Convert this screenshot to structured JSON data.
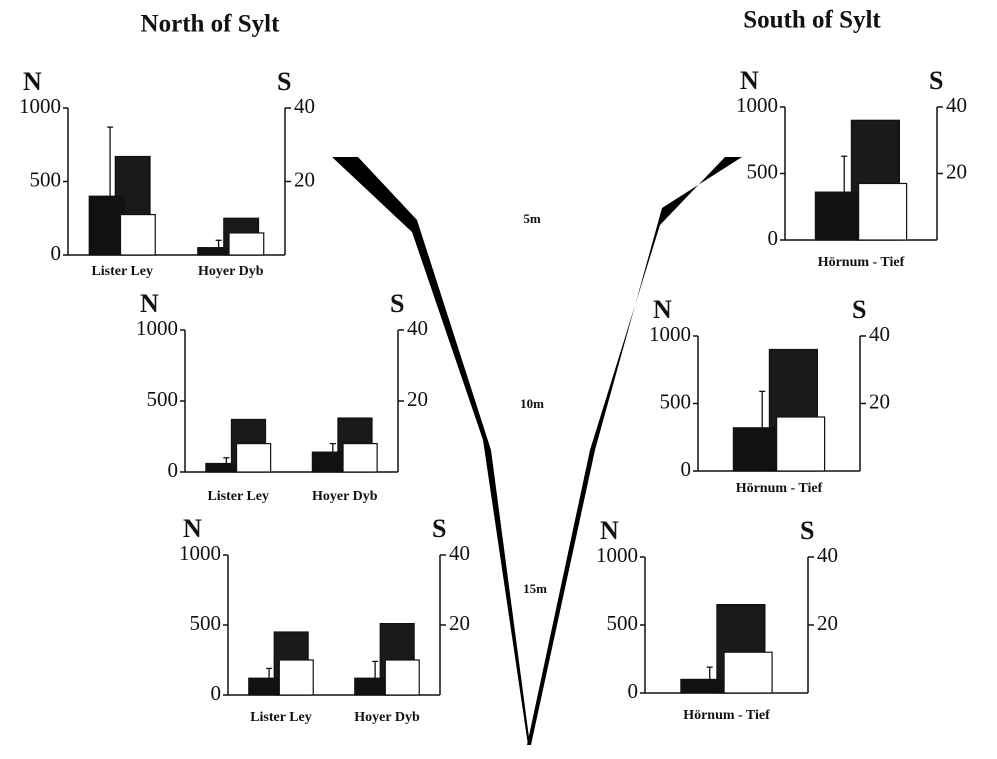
{
  "column_titles": [
    "North of Sylt",
    "South of Sylt"
  ],
  "depth_labels": [
    "5m",
    "10m",
    "15m"
  ],
  "chart_data": [
    {
      "type": "bar",
      "ylabel": "N",
      "y2label": "S",
      "categories": [
        "Lister Ley",
        "Hoyer Dyb"
      ],
      "ylim": [
        0,
        1000
      ],
      "yticks": [
        0,
        500,
        1000
      ],
      "y2lim": [
        0,
        40
      ],
      "y2ticks": [
        20,
        40
      ],
      "series": [
        {
          "name": "N",
          "color": "#111111",
          "values": [
            400,
            50
          ],
          "errors": [
            470,
            50
          ]
        },
        {
          "color": "#1a1a1a",
          "values": [
            670,
            250
          ]
        },
        {
          "name": "S",
          "color": "#ffffff",
          "axis": "y2",
          "values": [
            11,
            6
          ]
        }
      ]
    },
    {
      "type": "bar",
      "ylabel": "N",
      "y2label": "S",
      "categories": [
        "Lister Ley",
        "Hoyer Dyb"
      ],
      "ylim": [
        0,
        1000
      ],
      "yticks": [
        0,
        500,
        1000
      ],
      "y2lim": [
        0,
        40
      ],
      "y2ticks": [
        20,
        40
      ],
      "series": [
        {
          "name": "N",
          "color": "#111111",
          "values": [
            60,
            140
          ],
          "errors": [
            40,
            60
          ]
        },
        {
          "color": "#1a1a1a",
          "values": [
            370,
            380
          ]
        },
        {
          "name": "S",
          "color": "#ffffff",
          "axis": "y2",
          "values": [
            8,
            8
          ]
        }
      ]
    },
    {
      "type": "bar",
      "ylabel": "N",
      "y2label": "S",
      "categories": [
        "Lister Ley",
        "Hoyer Dyb"
      ],
      "ylim": [
        0,
        1000
      ],
      "yticks": [
        0,
        500,
        1000
      ],
      "y2lim": [
        0,
        40
      ],
      "y2ticks": [
        20,
        40
      ],
      "series": [
        {
          "name": "N",
          "color": "#111111",
          "values": [
            120,
            120
          ],
          "errors": [
            70,
            120
          ]
        },
        {
          "color": "#1a1a1a",
          "values": [
            450,
            510
          ]
        },
        {
          "name": "S",
          "color": "#ffffff",
          "axis": "y2",
          "values": [
            10,
            10
          ]
        }
      ]
    },
    {
      "type": "bar",
      "ylabel": "N",
      "y2label": "S",
      "categories": [
        "Hörnum - Tief"
      ],
      "ylim": [
        0,
        1000
      ],
      "yticks": [
        0,
        500,
        1000
      ],
      "y2lim": [
        0,
        40
      ],
      "y2ticks": [
        20,
        40
      ],
      "series": [
        {
          "name": "N",
          "color": "#111111",
          "values": [
            360
          ],
          "errors": [
            270
          ]
        },
        {
          "color": "#1a1a1a",
          "values": [
            900
          ]
        },
        {
          "name": "S",
          "color": "#ffffff",
          "axis": "y2",
          "values": [
            17
          ]
        }
      ]
    },
    {
      "type": "bar",
      "ylabel": "N",
      "y2label": "S",
      "categories": [
        "Hörnum - Tief"
      ],
      "ylim": [
        0,
        1000
      ],
      "yticks": [
        0,
        500,
        1000
      ],
      "y2lim": [
        0,
        40
      ],
      "y2ticks": [
        20,
        40
      ],
      "series": [
        {
          "name": "N",
          "color": "#111111",
          "values": [
            320
          ],
          "errors": [
            270
          ]
        },
        {
          "color": "#1a1a1a",
          "values": [
            900
          ]
        },
        {
          "name": "S",
          "color": "#ffffff",
          "axis": "y2",
          "values": [
            16
          ]
        }
      ]
    },
    {
      "type": "bar",
      "ylabel": "N",
      "y2label": "S",
      "categories": [
        "Hörnum - Tief"
      ],
      "ylim": [
        0,
        1000
      ],
      "yticks": [
        0,
        500,
        1000
      ],
      "y2lim": [
        0,
        40
      ],
      "y2ticks": [
        20,
        40
      ],
      "series": [
        {
          "name": "N",
          "color": "#111111",
          "values": [
            100
          ],
          "errors": [
            90
          ]
        },
        {
          "color": "#1a1a1a",
          "values": [
            650
          ]
        },
        {
          "name": "S",
          "color": "#ffffff",
          "axis": "y2",
          "values": [
            12
          ]
        }
      ]
    }
  ]
}
